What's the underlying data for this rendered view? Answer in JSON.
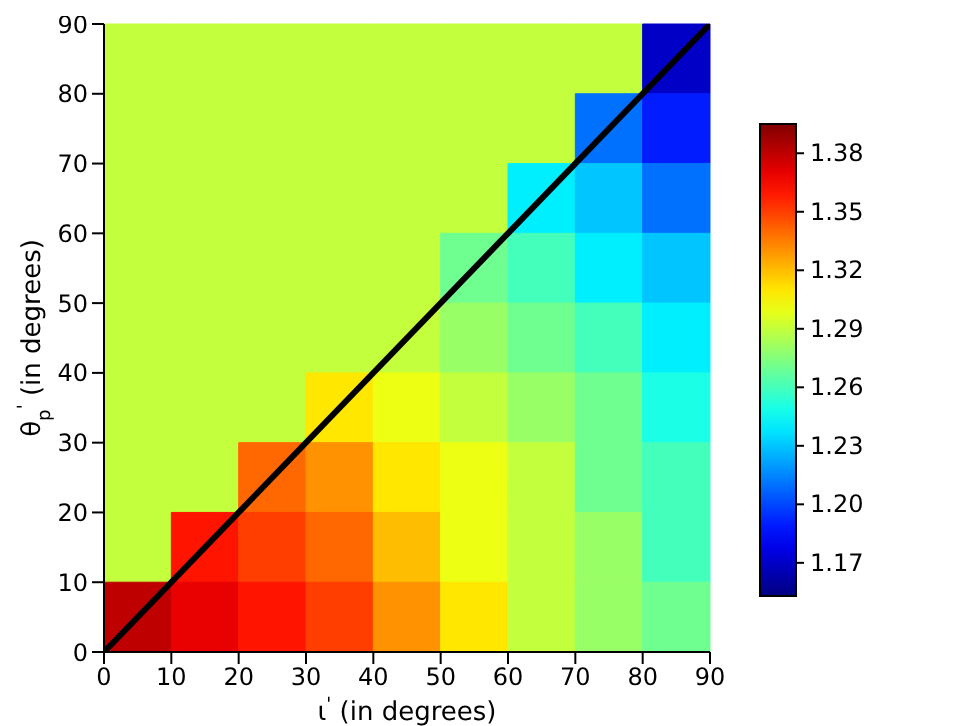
{
  "chart_data": {
    "type": "heatmap",
    "xlabel": "ι$^{'}$ (in degrees)",
    "ylabel": "θ$_{p}$$^{'}$ (in degrees)",
    "x": [
      5,
      15,
      25,
      35,
      45,
      55,
      65,
      75,
      85
    ],
    "cells": [
      [
        1.29,
        1.29,
        1.29,
        1.29,
        1.29,
        1.29,
        1.29,
        1.29,
        1.17
      ],
      [
        1.29,
        1.29,
        1.29,
        1.29,
        1.29,
        1.29,
        1.29,
        1.21,
        1.19
      ],
      [
        1.29,
        1.29,
        1.29,
        1.29,
        1.29,
        1.29,
        1.24,
        1.23,
        1.21
      ],
      [
        1.29,
        1.29,
        1.29,
        1.29,
        1.29,
        1.27,
        1.26,
        1.24,
        1.23
      ],
      [
        1.29,
        1.29,
        1.29,
        1.29,
        1.29,
        1.28,
        1.27,
        1.26,
        1.24
      ],
      [
        1.29,
        1.29,
        1.29,
        1.31,
        1.3,
        1.29,
        1.28,
        1.27,
        1.25
      ],
      [
        1.29,
        1.29,
        1.34,
        1.33,
        1.31,
        1.3,
        1.29,
        1.27,
        1.26
      ],
      [
        1.29,
        1.36,
        1.35,
        1.34,
        1.32,
        1.3,
        1.29,
        1.28,
        1.26
      ],
      [
        1.38,
        1.37,
        1.36,
        1.35,
        1.33,
        1.31,
        1.29,
        1.28,
        1.27
      ]
    ],
    "series": [
      {
        "type": "line",
        "x": [
          0,
          90
        ],
        "values": [
          0,
          90
        ],
        "color": "#000000"
      }
    ],
    "xlim": [
      0,
      90
    ],
    "ylim": [
      0,
      90
    ],
    "xticks": [
      0,
      10,
      20,
      30,
      40,
      50,
      60,
      70,
      80,
      90
    ],
    "yticks": [
      0,
      10,
      20,
      30,
      40,
      50,
      60,
      70,
      80,
      90
    ],
    "clim": [
      1.153,
      1.395
    ],
    "cticks": [
      1.17,
      {
        "value": 1.2,
        "label": "1.20"
      },
      1.23,
      1.26,
      1.29,
      1.32,
      1.35,
      1.38
    ]
  }
}
